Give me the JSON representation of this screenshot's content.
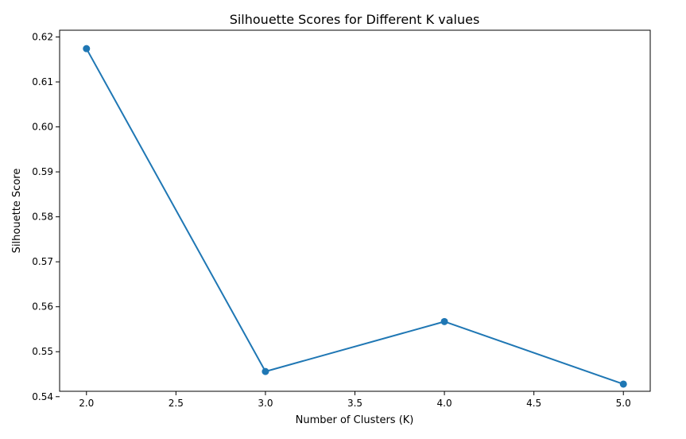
{
  "chart_data": {
    "type": "line",
    "title": "Silhouette Scores for Different K values",
    "xlabel": "Number of Clusters (K)",
    "ylabel": "Silhouette Score",
    "x": [
      2,
      3,
      4,
      5
    ],
    "series": [
      {
        "values": [
          0.6174,
          0.5456,
          0.5567,
          0.5428
        ],
        "color": "#1f77b4",
        "marker": "circle"
      }
    ],
    "xlim": [
      1.85,
      5.15
    ],
    "ylim": [
      0.5412,
      0.6215
    ],
    "xticks": [
      2.0,
      2.5,
      3.0,
      3.5,
      4.0,
      4.5,
      5.0
    ],
    "xtick_labels": [
      "2.0",
      "2.5",
      "3.0",
      "3.5",
      "4.0",
      "4.5",
      "5.0"
    ],
    "yticks": [
      0.54,
      0.55,
      0.56,
      0.57,
      0.58,
      0.59,
      0.6,
      0.61,
      0.62
    ],
    "ytick_labels": [
      "0.54",
      "0.55",
      "0.56",
      "0.57",
      "0.58",
      "0.59",
      "0.60",
      "0.61",
      "0.62"
    ],
    "grid": false
  }
}
